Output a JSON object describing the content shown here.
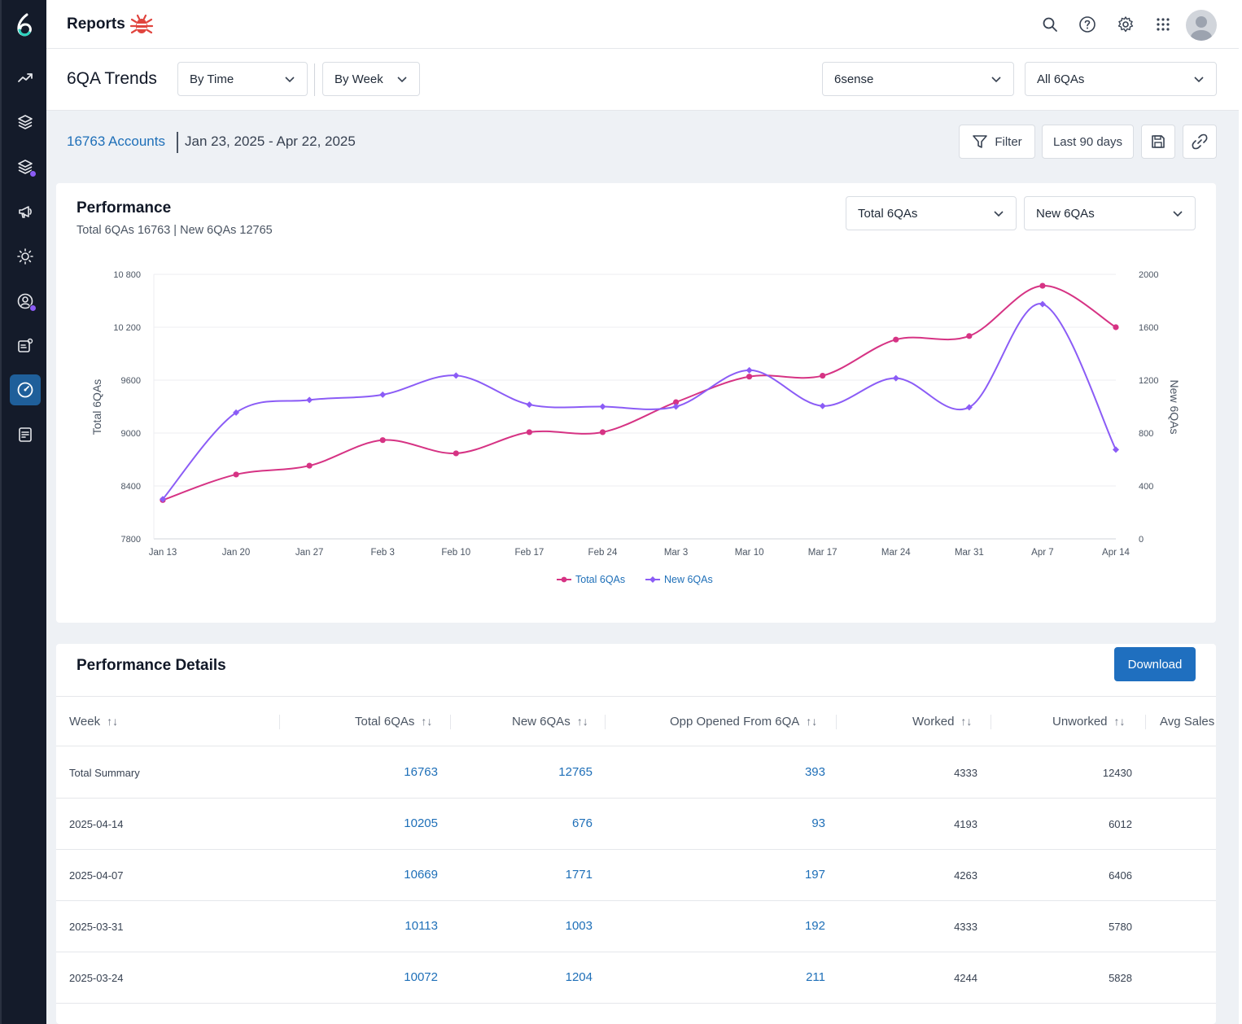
{
  "app": {
    "title": "Reports"
  },
  "header": {
    "page_title": "6QA Trends",
    "view_select": "By Time",
    "period_select": "By Week",
    "account_select": "6sense",
    "segment_select": "All 6QAs"
  },
  "summary": {
    "accounts": "16763 Accounts",
    "date_range": "Jan 23, 2025 - Apr 22, 2025",
    "filter_label": "Filter",
    "range_label": "Last 90 days"
  },
  "performance": {
    "title": "Performance",
    "subtitle": "Total 6QAs 16763 | New 6QAs 12765",
    "metric1": "Total 6QAs",
    "metric2": "New 6QAs"
  },
  "chart_data": {
    "type": "line",
    "x": [
      "Jan 13",
      "Jan 20",
      "Jan 27",
      "Feb 3",
      "Feb 10",
      "Feb 17",
      "Feb 24",
      "Mar 3",
      "Mar 10",
      "Mar 17",
      "Mar 24",
      "Mar 31",
      "Apr 7",
      "Apr 14"
    ],
    "series": [
      {
        "name": "Total 6QAs",
        "axis": "left",
        "color": "#d63384",
        "values": [
          8240,
          8530,
          8630,
          8920,
          8770,
          9010,
          9010,
          9350,
          9640,
          9650,
          10060,
          10100,
          10670,
          10200
        ]
      },
      {
        "name": "New 6QAs",
        "axis": "right",
        "color": "#8b5cf6",
        "values": [
          300,
          955,
          1050,
          1090,
          1235,
          1015,
          1000,
          1000,
          1275,
          1005,
          1215,
          995,
          1775,
          675
        ]
      }
    ],
    "ylabel": "Total 6QAs",
    "y2label": "New 6QAs",
    "ylim": [
      7800,
      10800
    ],
    "y2lim": [
      0,
      2000
    ],
    "yticks": [
      "10 800",
      "10 200",
      "9600",
      "9000",
      "8400",
      "7800"
    ],
    "y2ticks": [
      "2000",
      "1600",
      "1200",
      "800",
      "400",
      "0"
    ],
    "grid": true,
    "legend": "bottom-center"
  },
  "details": {
    "title": "Performance Details",
    "download_label": "Download",
    "columns": [
      "Week",
      "Total 6QAs",
      "New 6QAs",
      "Opp Opened From 6QA",
      "Worked",
      "Unworked",
      "Avg Sales"
    ],
    "rows": [
      {
        "week": "Total Summary",
        "total": "16763",
        "new": "12765",
        "opp": "393",
        "worked": "4333",
        "unworked": "12430"
      },
      {
        "week": "2025-04-14",
        "total": "10205",
        "new": "676",
        "opp": "93",
        "worked": "4193",
        "unworked": "6012"
      },
      {
        "week": "2025-04-07",
        "total": "10669",
        "new": "1771",
        "opp": "197",
        "worked": "4263",
        "unworked": "6406"
      },
      {
        "week": "2025-03-31",
        "total": "10113",
        "new": "1003",
        "opp": "192",
        "worked": "4333",
        "unworked": "5780"
      },
      {
        "week": "2025-03-24",
        "total": "10072",
        "new": "1204",
        "opp": "211",
        "worked": "4244",
        "unworked": "5828"
      }
    ]
  }
}
